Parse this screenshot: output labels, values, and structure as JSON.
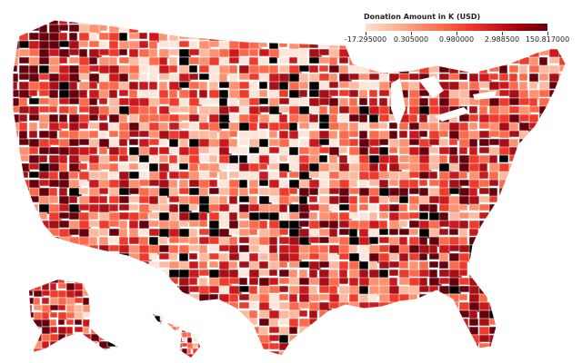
{
  "legend": {
    "title": "Donation Amount in K (USD)",
    "ticks": [
      "-17.295000",
      "0.305000",
      "0.980000",
      "2.988500",
      "150.817000"
    ],
    "colors": [
      "#fee0d2",
      "#fcbba1",
      "#fc9272",
      "#fb6a4a",
      "#ef3b2c",
      "#cb181d",
      "#99000d",
      "#67000d"
    ]
  },
  "palette": {
    "no_data": "#000000",
    "border": "#ffffff",
    "levels": [
      "#fee5d9",
      "#fcbba1",
      "#fc9272",
      "#fb6a4a",
      "#ef3b2c",
      "#cb181d",
      "#a50f15",
      "#67000d"
    ]
  }
}
